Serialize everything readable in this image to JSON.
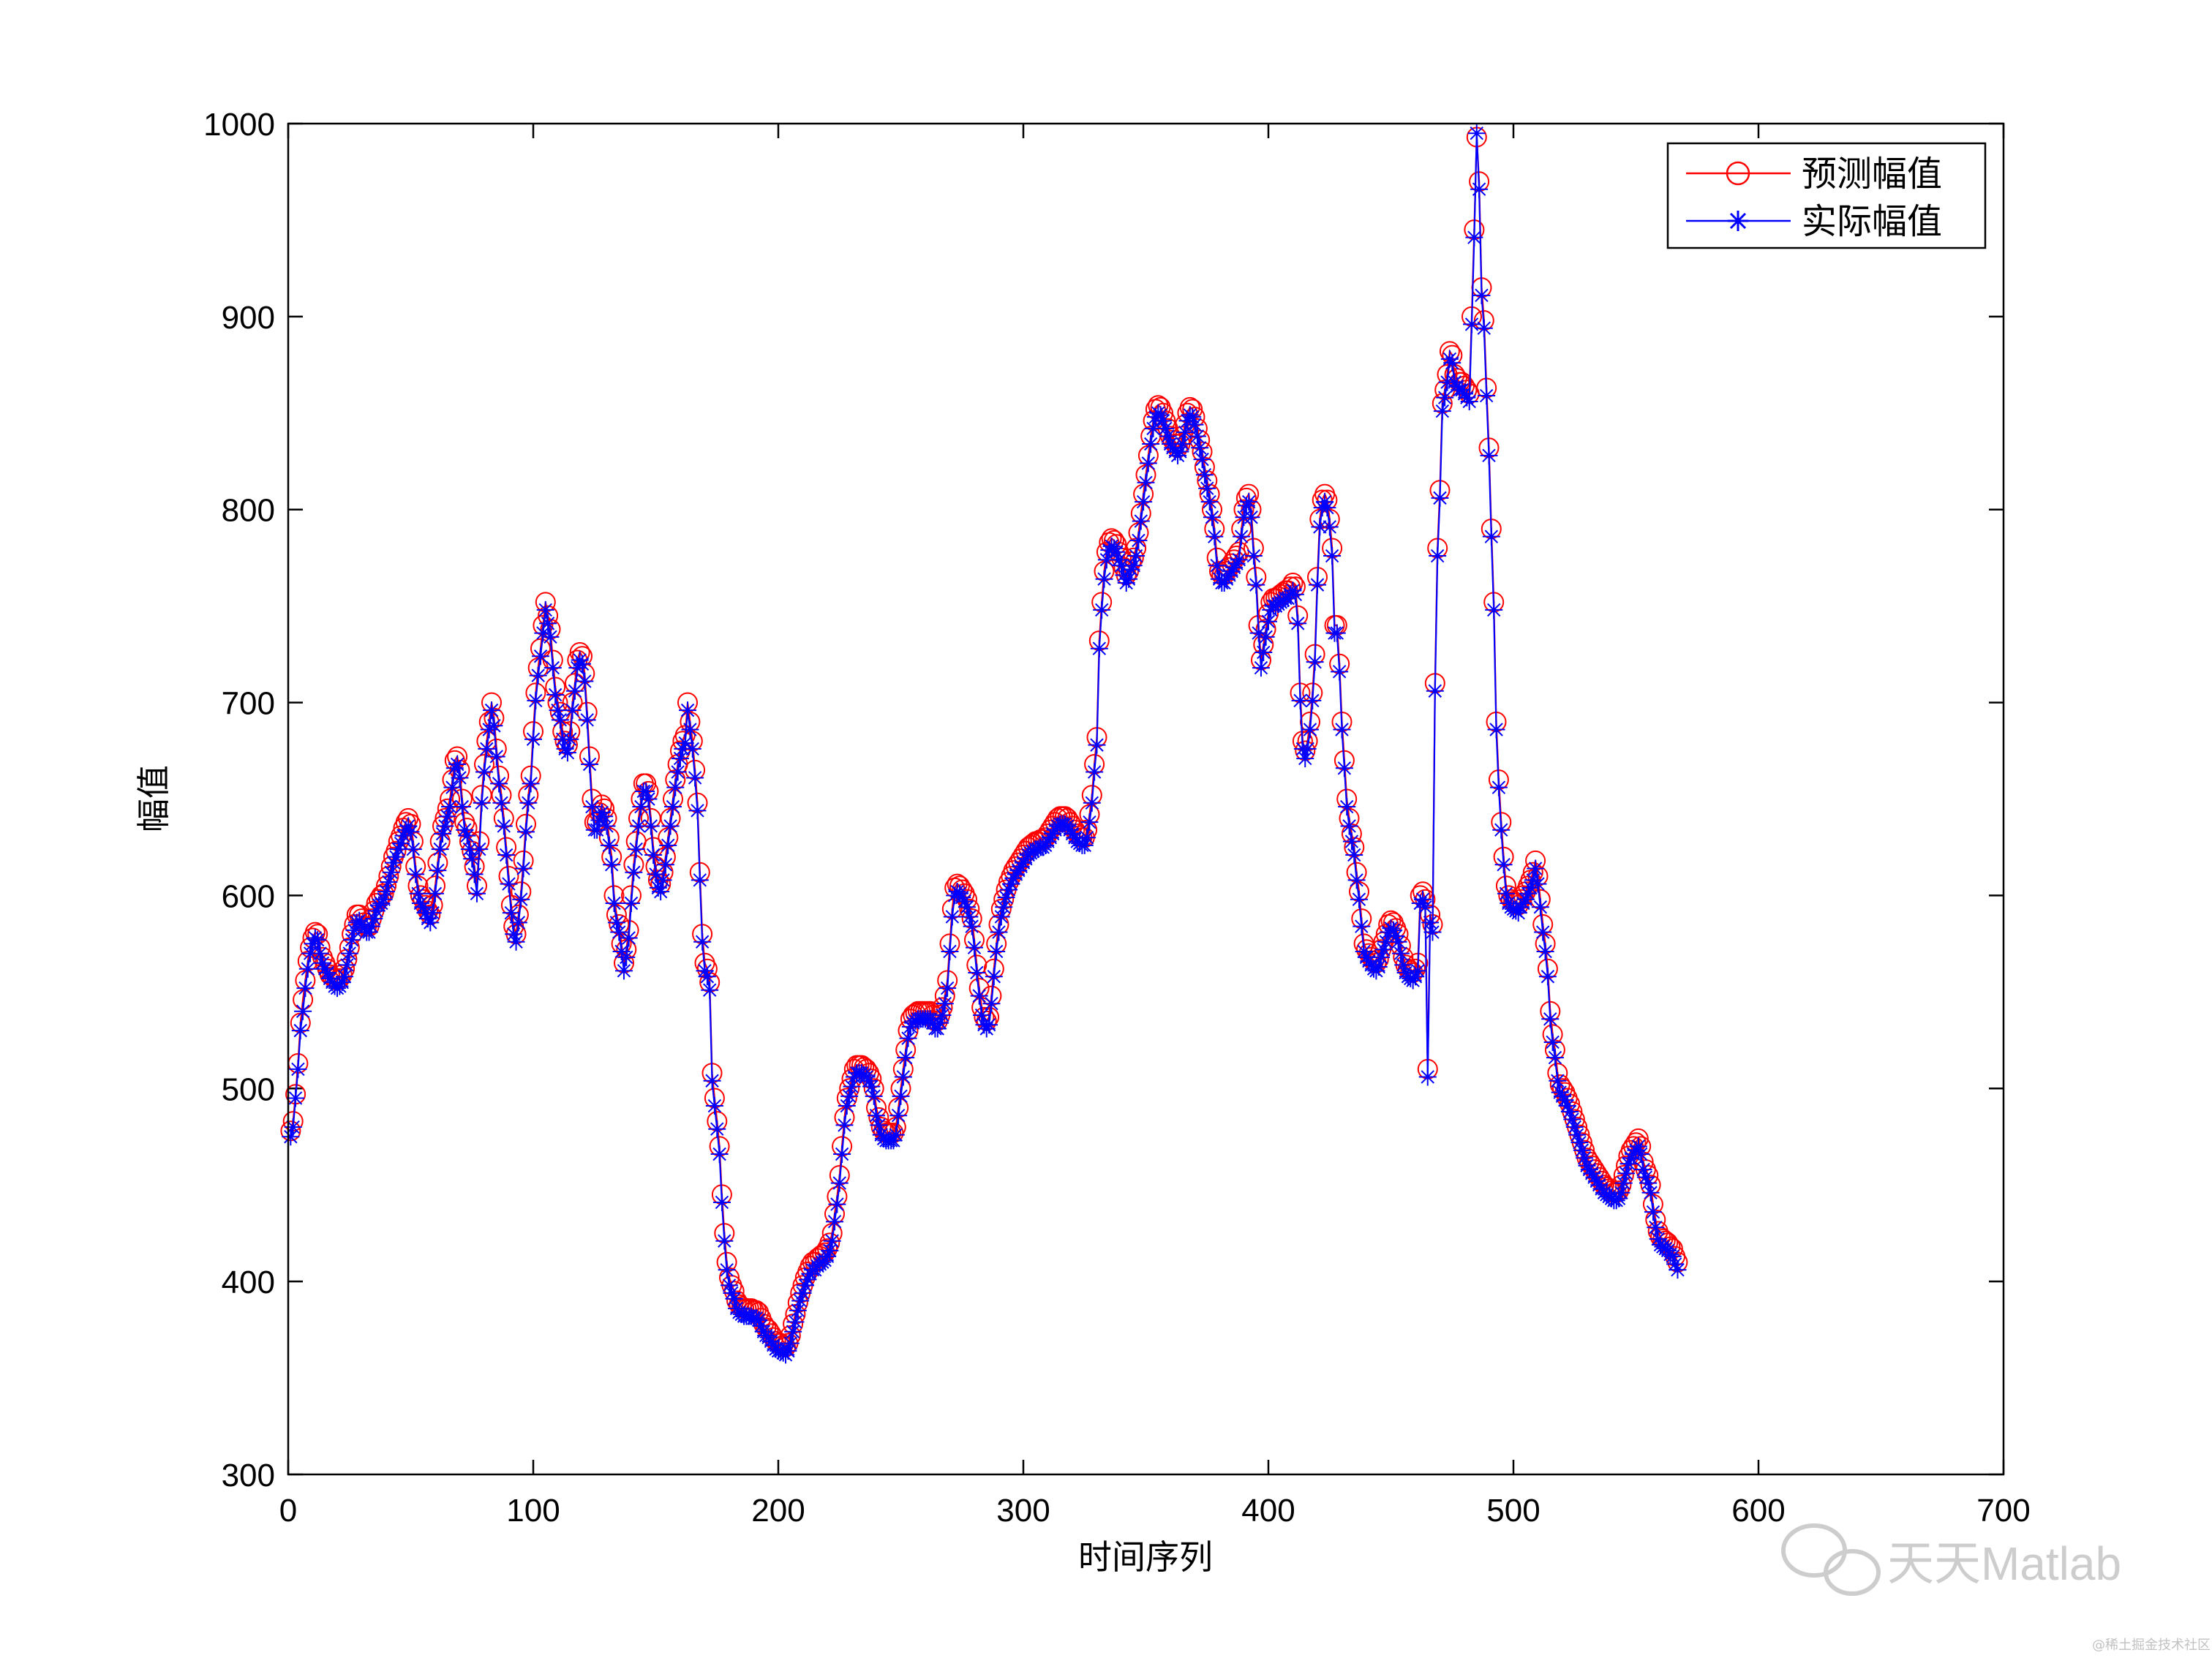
{
  "chart_data": {
    "type": "line",
    "xlabel": "时间序列",
    "ylabel": "幅值",
    "xlim": [
      0,
      700
    ],
    "ylim": [
      300,
      1000
    ],
    "xticks": [
      0,
      100,
      200,
      300,
      400,
      500,
      600,
      700
    ],
    "yticks": [
      300,
      400,
      500,
      600,
      700,
      800,
      900,
      1000
    ],
    "grid": false,
    "legend_position": "top-right",
    "series": [
      {
        "name": "预测幅值",
        "color": "#ff0000",
        "marker": "circle",
        "values": [
          478,
          483,
          497,
          513,
          534,
          546,
          556,
          566,
          573,
          578,
          581,
          580,
          573,
          568,
          565,
          562,
          559,
          558,
          557,
          556,
          557,
          559,
          562,
          567,
          573,
          580,
          585,
          590,
          590,
          588,
          586,
          584,
          584,
          588,
          592,
          596,
          598,
          600,
          601,
          605,
          610,
          615,
          620,
          623,
          628,
          631,
          635,
          638,
          640,
          637,
          628,
          615,
          605,
          600,
          598,
          595,
          592,
          590,
          595,
          605,
          617,
          628,
          636,
          640,
          645,
          650,
          660,
          670,
          672,
          665,
          650,
          638,
          635,
          628,
          623,
          615,
          605,
          628,
          652,
          668,
          680,
          690,
          700,
          692,
          676,
          662,
          652,
          640,
          625,
          610,
          595,
          584,
          580,
          590,
          602,
          618,
          637,
          652,
          662,
          685,
          705,
          718,
          728,
          740,
          752,
          745,
          738,
          722,
          708,
          700,
          695,
          685,
          680,
          678,
          685,
          700,
          710,
          722,
          726,
          724,
          715,
          695,
          672,
          650,
          638,
          638,
          643,
          647,
          645,
          640,
          630,
          620,
          600,
          590,
          585,
          575,
          565,
          572,
          582,
          600,
          616,
          628,
          640,
          650,
          658,
          658,
          654,
          640,
          625,
          615,
          608,
          606,
          612,
          620,
          630,
          640,
          650,
          660,
          668,
          675,
          680,
          683,
          700,
          690,
          680,
          665,
          648,
          612,
          580,
          565,
          562,
          555,
          508,
          495,
          483,
          470,
          445,
          425,
          410,
          402,
          398,
          395,
          390,
          388,
          387,
          386,
          386,
          386,
          386,
          385,
          385,
          384,
          381,
          378,
          376,
          375,
          373,
          371,
          369,
          368,
          368,
          367,
          366,
          368,
          372,
          378,
          383,
          389,
          394,
          398,
          402,
          405,
          408,
          410,
          410,
          412,
          413,
          414,
          415,
          417,
          420,
          425,
          435,
          444,
          455,
          470,
          485,
          495,
          500,
          505,
          510,
          512,
          512,
          512,
          511,
          510,
          508,
          505,
          500,
          490,
          485,
          480,
          478,
          477,
          477,
          477,
          477,
          480,
          490,
          500,
          510,
          520,
          530,
          536,
          538,
          539,
          540,
          540,
          540,
          540,
          540,
          540,
          538,
          535,
          535,
          538,
          542,
          548,
          556,
          575,
          593,
          604,
          606,
          605,
          603,
          601,
          598,
          593,
          588,
          577,
          564,
          552,
          542,
          537,
          535,
          537,
          548,
          562,
          575,
          585,
          593,
          598,
          603,
          607,
          610,
          613,
          615,
          617,
          619,
          621,
          623,
          625,
          626,
          627,
          628,
          628,
          629,
          629,
          630,
          632,
          634,
          636,
          638,
          640,
          641,
          641,
          641,
          640,
          638,
          636,
          634,
          632,
          631,
          630,
          630,
          634,
          642,
          652,
          668,
          682,
          732,
          752,
          768,
          778,
          783,
          785,
          784,
          782,
          778,
          775,
          770,
          766,
          768,
          773,
          775,
          780,
          788,
          798,
          808,
          818,
          828,
          838,
          846,
          852,
          854,
          853,
          850,
          846,
          842,
          838,
          836,
          834,
          832,
          834,
          838,
          844,
          850,
          853,
          852,
          848,
          842,
          836,
          830,
          822,
          815,
          808,
          800,
          790,
          775,
          768,
          766,
          766,
          768,
          770,
          772,
          774,
          776,
          778,
          790,
          800,
          806,
          808,
          800,
          780,
          765,
          740,
          722,
          730,
          738,
          746,
          752,
          754,
          754,
          755,
          756,
          757,
          758,
          758,
          760,
          762,
          760,
          745,
          705,
          680,
          675,
          680,
          690,
          705,
          725,
          765,
          795,
          805,
          808,
          805,
          795,
          780,
          740,
          740,
          720,
          690,
          670,
          650,
          640,
          632,
          625,
          612,
          602,
          588,
          575,
          572,
          570,
          568,
          566,
          565,
          567,
          572,
          576,
          580,
          585,
          587,
          586,
          583,
          580,
          574,
          568,
          564,
          562,
          561,
          560,
          562,
          565,
          600,
          602,
          598,
          510,
          590,
          585,
          710,
          780,
          810,
          855,
          862,
          870,
          882,
          880,
          870,
          868,
          866,
          866,
          864,
          862,
          860,
          900,
          945,
          993,
          970,
          915,
          898,
          863,
          832,
          790,
          752,
          690,
          660,
          638,
          620,
          605,
          600,
          598,
          597,
          596,
          595,
          598,
          600,
          602,
          605,
          608,
          612,
          618,
          610,
          598,
          585,
          575,
          562,
          540,
          528,
          520,
          508,
          502,
          500,
          498,
          495,
          492,
          488,
          484,
          480,
          476,
          472,
          468,
          464,
          462,
          460,
          458,
          456,
          454,
          452,
          450,
          449,
          448,
          447,
          446,
          446,
          447,
          450,
          455,
          460,
          465,
          468,
          470,
          472,
          474,
          470,
          462,
          458,
          455,
          450,
          440,
          432,
          426,
          423,
          422,
          421,
          420,
          418,
          417,
          413,
          410
        ]
      },
      {
        "name": "实际幅值",
        "color": "#0000ff",
        "marker": "asterisk",
        "values": [
          475,
          480,
          495,
          510,
          530,
          540,
          552,
          562,
          570,
          575,
          578,
          577,
          570,
          565,
          562,
          560,
          557,
          555,
          553,
          552,
          553,
          555,
          558,
          564,
          570,
          577,
          582,
          586,
          587,
          585,
          583,
          581,
          581,
          584,
          588,
          592,
          595,
          596,
          598,
          602,
          607,
          612,
          617,
          620,
          624,
          627,
          631,
          634,
          636,
          633,
          624,
          611,
          601,
          596,
          594,
          591,
          588,
          586,
          591,
          601,
          613,
          624,
          632,
          636,
          641,
          646,
          656,
          666,
          668,
          661,
          646,
          634,
          631,
          624,
          619,
          611,
          601,
          624,
          648,
          664,
          676,
          686,
          696,
          688,
          672,
          658,
          648,
          636,
          621,
          606,
          591,
          580,
          576,
          586,
          598,
          614,
          633,
          648,
          658,
          681,
          701,
          714,
          724,
          736,
          748,
          741,
          734,
          718,
          704,
          696,
          691,
          681,
          676,
          674,
          681,
          696,
          706,
          718,
          722,
          720,
          711,
          691,
          668,
          646,
          634,
          634,
          639,
          643,
          641,
          636,
          626,
          616,
          596,
          586,
          581,
          571,
          561,
          568,
          578,
          596,
          612,
          624,
          636,
          646,
          654,
          654,
          650,
          636,
          621,
          611,
          604,
          602,
          608,
          616,
          626,
          636,
          646,
          656,
          664,
          671,
          676,
          679,
          696,
          686,
          676,
          661,
          644,
          608,
          576,
          561,
          558,
          551,
          504,
          491,
          479,
          466,
          441,
          421,
          406,
          398,
          394,
          391,
          386,
          384,
          383,
          382,
          382,
          382,
          382,
          381,
          381,
          380,
          377,
          374,
          372,
          371,
          369,
          367,
          365,
          364,
          364,
          363,
          362,
          364,
          368,
          374,
          379,
          385,
          390,
          394,
          398,
          401,
          404,
          406,
          406,
          408,
          409,
          410,
          411,
          413,
          416,
          421,
          431,
          440,
          451,
          466,
          481,
          491,
          496,
          501,
          506,
          508,
          508,
          508,
          507,
          506,
          504,
          501,
          496,
          486,
          481,
          476,
          474,
          473,
          473,
          473,
          473,
          476,
          486,
          496,
          506,
          516,
          526,
          532,
          534,
          535,
          536,
          536,
          536,
          536,
          536,
          536,
          534,
          531,
          531,
          534,
          538,
          544,
          552,
          571,
          589,
          600,
          602,
          601,
          599,
          597,
          594,
          589,
          584,
          573,
          560,
          548,
          538,
          533,
          531,
          533,
          544,
          558,
          571,
          581,
          589,
          594,
          599,
          603,
          606,
          609,
          611,
          613,
          615,
          617,
          619,
          621,
          622,
          623,
          624,
          624,
          625,
          625,
          626,
          628,
          630,
          632,
          634,
          636,
          637,
          637,
          637,
          636,
          634,
          632,
          630,
          628,
          627,
          626,
          626,
          630,
          638,
          648,
          664,
          678,
          728,
          748,
          764,
          774,
          779,
          781,
          780,
          778,
          774,
          771,
          766,
          762,
          764,
          769,
          771,
          776,
          784,
          794,
          804,
          814,
          824,
          834,
          842,
          848,
          850,
          849,
          846,
          842,
          838,
          834,
          832,
          830,
          828,
          830,
          834,
          840,
          846,
          849,
          848,
          844,
          838,
          832,
          826,
          818,
          811,
          804,
          796,
          786,
          771,
          764,
          762,
          762,
          764,
          766,
          768,
          770,
          772,
          774,
          786,
          796,
          802,
          804,
          796,
          776,
          761,
          736,
          718,
          726,
          734,
          742,
          748,
          750,
          750,
          751,
          752,
          753,
          754,
          754,
          756,
          758,
          756,
          741,
          701,
          676,
          671,
          676,
          686,
          701,
          721,
          761,
          791,
          801,
          804,
          801,
          791,
          776,
          736,
          736,
          716,
          686,
          666,
          646,
          636,
          628,
          621,
          608,
          598,
          584,
          571,
          568,
          566,
          564,
          562,
          561,
          563,
          568,
          572,
          576,
          581,
          583,
          582,
          579,
          576,
          570,
          564,
          560,
          558,
          557,
          556,
          558,
          561,
          596,
          598,
          594,
          506,
          586,
          581,
          706,
          776,
          806,
          851,
          858,
          866,
          878,
          876,
          866,
          864,
          862,
          862,
          860,
          858,
          856,
          896,
          941,
          995,
          966,
          911,
          894,
          859,
          828,
          786,
          748,
          686,
          656,
          634,
          616,
          601,
          596,
          594,
          593,
          592,
          591,
          594,
          596,
          598,
          601,
          604,
          608,
          614,
          606,
          594,
          581,
          571,
          558,
          536,
          524,
          516,
          504,
          498,
          496,
          494,
          491,
          488,
          484,
          480,
          476,
          472,
          468,
          464,
          460,
          458,
          456,
          454,
          452,
          450,
          448,
          446,
          445,
          444,
          443,
          442,
          442,
          443,
          446,
          451,
          456,
          461,
          464,
          466,
          468,
          470,
          466,
          458,
          454,
          451,
          446,
          436,
          428,
          422,
          419,
          418,
          417,
          416,
          414,
          413,
          409,
          406
        ]
      }
    ]
  },
  "watermark": {
    "brand": "天天Matlab",
    "source": "@稀土掘金技术社区"
  }
}
